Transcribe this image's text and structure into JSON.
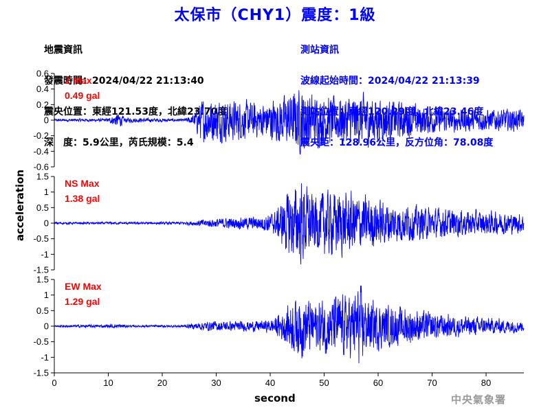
{
  "header": {
    "title": "太保市（CHY1）震度：1級"
  },
  "quake_info": {
    "lines": [
      "地震資訊",
      "發震時間：2024/04/22 21:13:40",
      "震央位置：東經121.53度，北緯23.70度",
      "深　度：5.9公里，芮氏規模：5.4"
    ]
  },
  "station_info": {
    "lines": [
      "測站資訊",
      "波線起始時間：2024/04/22 21:13:39",
      "測站位置：東經120.29度，北緯23.46度",
      "震央距：128.96公里，反方位角：78.08度"
    ]
  },
  "watermark": "中央氣象署",
  "colors": {
    "title": "#0000ff",
    "trace": "#0000ff",
    "max_label": "#ff0000",
    "station_text": "#0000ff",
    "quake_text": "#000000",
    "watermark": "#9a9a9a"
  },
  "chart_data": {
    "type": "line",
    "xlabel": "second",
    "ylabel": "acceleration",
    "xlim": [
      0,
      87
    ],
    "xticks": [
      0,
      10,
      20,
      30,
      40,
      50,
      60,
      70,
      80
    ],
    "grid": false,
    "panels": [
      {
        "name": "Z",
        "max_label": "Z Max",
        "max_value": "0.49 gal",
        "ylim": [
          -0.6,
          0.6
        ],
        "yticks": [
          -0.6,
          -0.4,
          -0.2,
          0,
          0.2,
          0.4,
          0.6
        ],
        "yticklabels": [
          "-0.6",
          "-0.4",
          "-0.2",
          "0",
          "0.2",
          "0.4",
          "0.6"
        ],
        "envelope": [
          [
            0,
            0.015
          ],
          [
            10,
            0.02
          ],
          [
            11,
            0.06
          ],
          [
            12,
            0.09
          ],
          [
            13,
            0.03
          ],
          [
            24,
            0.015
          ],
          [
            25.5,
            0.05
          ],
          [
            27,
            0.22
          ],
          [
            28,
            0.28
          ],
          [
            30,
            0.25
          ],
          [
            33,
            0.24
          ],
          [
            36,
            0.22
          ],
          [
            38,
            0.2
          ],
          [
            40,
            0.24
          ],
          [
            43,
            0.3
          ],
          [
            45,
            0.36
          ],
          [
            46,
            0.4
          ],
          [
            48,
            0.3
          ],
          [
            52,
            0.28
          ],
          [
            55,
            0.3
          ],
          [
            58,
            0.3
          ],
          [
            62,
            0.24
          ],
          [
            66,
            0.2
          ],
          [
            70,
            0.16
          ],
          [
            75,
            0.14
          ],
          [
            80,
            0.13
          ],
          [
            86,
            0.13
          ],
          [
            87,
            0.1
          ]
        ]
      },
      {
        "name": "NS",
        "max_label": "NS Max",
        "max_value": "1.38 gal",
        "ylim": [
          -1.5,
          1.5
        ],
        "yticks": [
          -1.5,
          -1,
          -0.5,
          0,
          0.5,
          1,
          1.5
        ],
        "yticklabels": [
          "-1.5",
          "-1",
          "-0.5",
          "0",
          "0.5",
          "1",
          "1.5"
        ],
        "envelope": [
          [
            0,
            0.03
          ],
          [
            24,
            0.04
          ],
          [
            27,
            0.1
          ],
          [
            30,
            0.14
          ],
          [
            35,
            0.18
          ],
          [
            38,
            0.2
          ],
          [
            41,
            0.35
          ],
          [
            43,
            0.9
          ],
          [
            44.5,
            1.1
          ],
          [
            46,
            1.25
          ],
          [
            48,
            0.8
          ],
          [
            50,
            0.95
          ],
          [
            53,
            0.95
          ],
          [
            55,
            0.9
          ],
          [
            58,
            0.8
          ],
          [
            61,
            0.65
          ],
          [
            65,
            0.55
          ],
          [
            70,
            0.45
          ],
          [
            75,
            0.4
          ],
          [
            80,
            0.35
          ],
          [
            85,
            0.3
          ],
          [
            87,
            0.3
          ]
        ]
      },
      {
        "name": "EW",
        "max_label": "EW Max",
        "max_value": "1.29 gal",
        "ylim": [
          -1.5,
          1.5
        ],
        "yticks": [
          -1.5,
          -1,
          -0.5,
          0,
          0.5,
          1,
          1.5
        ],
        "yticklabels": [
          "-1.5",
          "-1",
          "-0.5",
          "0",
          "0.5",
          "1",
          "1.5"
        ],
        "envelope": [
          [
            0,
            0.03
          ],
          [
            10,
            0.05
          ],
          [
            12,
            0.07
          ],
          [
            14,
            0.03
          ],
          [
            24,
            0.04
          ],
          [
            27,
            0.12
          ],
          [
            30,
            0.15
          ],
          [
            35,
            0.14
          ],
          [
            40,
            0.18
          ],
          [
            42,
            0.4
          ],
          [
            44,
            0.75
          ],
          [
            46,
            0.95
          ],
          [
            48,
            0.7
          ],
          [
            52,
            0.9
          ],
          [
            55,
            0.9
          ],
          [
            56.5,
            1.2
          ],
          [
            58,
            0.8
          ],
          [
            62,
            0.6
          ],
          [
            65,
            0.55
          ],
          [
            70,
            0.4
          ],
          [
            75,
            0.3
          ],
          [
            80,
            0.25
          ],
          [
            85,
            0.2
          ],
          [
            87,
            0.15
          ]
        ]
      }
    ]
  }
}
